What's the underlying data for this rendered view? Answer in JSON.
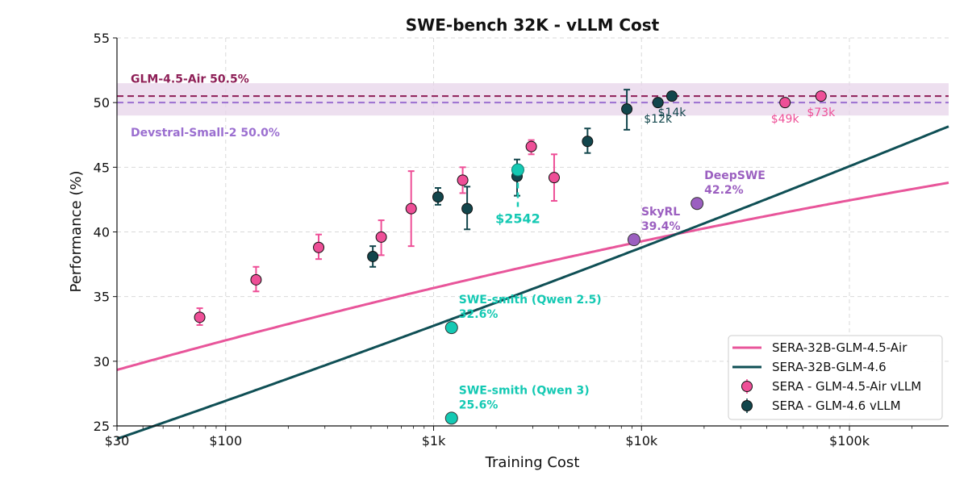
{
  "chart_data": {
    "type": "scatter",
    "title": "SWE-bench 32K - vLLM Cost",
    "xlabel": "Training Cost",
    "ylabel": "Performance (%)",
    "xscale": "log",
    "xlim": [
      30,
      300000
    ],
    "ylim": [
      25,
      55
    ],
    "x_ticks": [
      {
        "value": 30,
        "label": "$30"
      },
      {
        "value": 100,
        "label": "$100"
      },
      {
        "value": 1000,
        "label": "$1k"
      },
      {
        "value": 10000,
        "label": "$10k"
      },
      {
        "value": 100000,
        "label": "$100k"
      }
    ],
    "y_ticks": [
      25,
      30,
      35,
      40,
      45,
      50,
      55
    ],
    "grid": true,
    "reference_lines": [
      {
        "name": "GLM-4.5-Air 50.5%",
        "y": 50.5,
        "color": "#8e1f57",
        "band": [
          49.0,
          51.5
        ],
        "band_color": "#e7d4ea"
      },
      {
        "name": "Devstral-Small-2 50.0%",
        "y": 50.0,
        "color": "#9b6fd0"
      }
    ],
    "fit_curves": [
      {
        "name": "SERA-32B-GLM-4.5-Air",
        "color": "#e8559a",
        "a": 29.33,
        "b": 4.49,
        "c": -0.218
      },
      {
        "name": "SERA-32B-GLM-4.6",
        "color": "#0f4f55",
        "a": 24.0,
        "b": 5.56,
        "c": 0.12
      }
    ],
    "series": [
      {
        "name": "SERA - GLM-4.5-Air vLLM",
        "color": "#ee4f97",
        "points": [
          {
            "x": 75,
            "y": 33.4,
            "lo": 32.8,
            "hi": 34.1
          },
          {
            "x": 140,
            "y": 36.3,
            "lo": 35.4,
            "hi": 37.3
          },
          {
            "x": 280,
            "y": 38.8,
            "lo": 37.9,
            "hi": 39.8
          },
          {
            "x": 560,
            "y": 39.6,
            "lo": 38.2,
            "hi": 40.9
          },
          {
            "x": 780,
            "y": 41.8,
            "lo": 38.9,
            "hi": 44.7
          },
          {
            "x": 1380,
            "y": 44.0,
            "lo": 43.0,
            "hi": 45.0
          },
          {
            "x": 2950,
            "y": 46.6,
            "lo": 46.0,
            "hi": 47.1
          },
          {
            "x": 3800,
            "y": 44.2,
            "lo": 42.4,
            "hi": 46.0
          },
          {
            "x": 49000,
            "y": 50.0
          },
          {
            "x": 73000,
            "y": 50.5
          }
        ]
      },
      {
        "name": "SERA - GLM-4.6 vLLM",
        "color": "#12464c",
        "points": [
          {
            "x": 510,
            "y": 38.1,
            "lo": 37.3,
            "hi": 38.9
          },
          {
            "x": 1050,
            "y": 42.7,
            "lo": 42.1,
            "hi": 43.4
          },
          {
            "x": 1450,
            "y": 41.8,
            "lo": 40.2,
            "hi": 43.5
          },
          {
            "x": 2520,
            "y": 44.3,
            "lo": 42.8,
            "hi": 45.6
          },
          {
            "x": 5500,
            "y": 47.0,
            "lo": 46.1,
            "hi": 48.0
          },
          {
            "x": 8500,
            "y": 49.5,
            "lo": 47.9,
            "hi": 51.0
          },
          {
            "x": 12000,
            "y": 50.0
          },
          {
            "x": 14000,
            "y": 50.5
          }
        ]
      }
    ],
    "highlight_point": {
      "label": "$2542",
      "x": 2542,
      "y": 44.8,
      "color": "#14c9b3"
    },
    "point_annotations": [
      {
        "text": "$12k",
        "x": 12000,
        "y": 50.0,
        "color": "#12464c",
        "anchor": "below"
      },
      {
        "text": "$14k",
        "x": 14000,
        "y": 50.5,
        "color": "#12464c",
        "anchor": "below"
      },
      {
        "text": "$49k",
        "x": 49000,
        "y": 50.0,
        "color": "#ee4f97",
        "anchor": "below"
      },
      {
        "text": "$73k",
        "x": 73000,
        "y": 50.5,
        "color": "#ee4f97",
        "anchor": "below"
      }
    ],
    "baselines": [
      {
        "name": "SkyRL",
        "value_label": "39.4%",
        "x": 9200,
        "y": 39.4,
        "color": "#9b5fc0",
        "label_color": "#9b5fc0"
      },
      {
        "name": "DeepSWE",
        "value_label": "42.2%",
        "x": 18500,
        "y": 42.2,
        "color": "#9b5fc0",
        "label_color": "#9b5fc0"
      },
      {
        "name": "SWE-smith (Qwen 2.5)",
        "value_label": "32.6%",
        "x": 1220,
        "y": 32.6,
        "color": "#14c9b3",
        "label_color": "#14c9b3"
      },
      {
        "name": "SWE-smith (Qwen 3)",
        "value_label": "25.6%",
        "x": 1220,
        "y": 25.6,
        "color": "#14c9b3",
        "label_color": "#14c9b3"
      }
    ],
    "legend": {
      "position": "bottom-right",
      "entries": [
        {
          "label": "SERA-32B-GLM-4.5-Air",
          "kind": "line",
          "color": "#e8559a"
        },
        {
          "label": "SERA-32B-GLM-4.6",
          "kind": "line",
          "color": "#0f4f55"
        },
        {
          "label": "SERA - GLM-4.5-Air vLLM",
          "kind": "marker",
          "color": "#ee4f97"
        },
        {
          "label": "SERA - GLM-4.6 vLLM",
          "kind": "marker",
          "color": "#12464c"
        }
      ]
    }
  }
}
